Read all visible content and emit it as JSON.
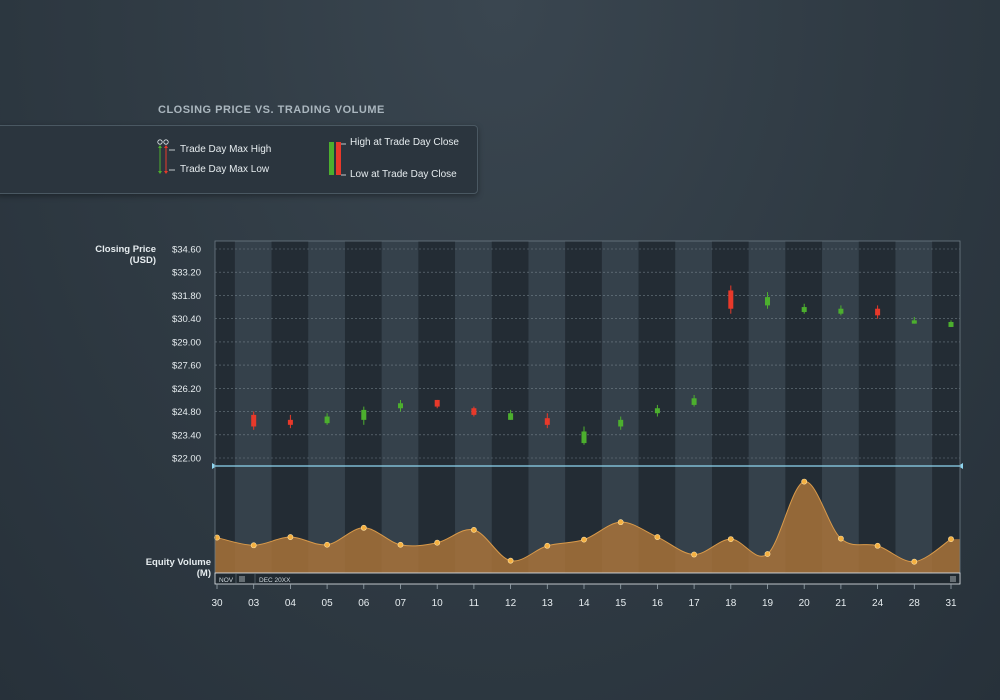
{
  "title": "CLOSING PRICE VS. TRADING VOLUME",
  "legend": {
    "max_high": "Trade Day Max High",
    "max_low": "Trade Day Max Low",
    "high_close": "High at Trade Day Close",
    "low_close": "Low at Trade Day Close"
  },
  "axes": {
    "price_label_line1": "Closing Price",
    "price_label_line2": "(USD)",
    "volume_label_line1": "Equity Volume",
    "volume_label_line2": "(M)",
    "navigator_left": "NOV",
    "navigator_month": "DEC 20XX"
  },
  "colors": {
    "up": "#4caf2e",
    "down": "#e8392a",
    "volume_fill": "#a8733a",
    "volume_point": "#f5b040",
    "divider": "#8fd6f0"
  },
  "chart_data": [
    {
      "type": "candlestick",
      "title": "CLOSING PRICE VS. TRADING VOLUME",
      "ylabel": "Closing Price (USD)",
      "yticks": [
        "$22.00",
        "$23.40",
        "$24.80",
        "$26.20",
        "$27.60",
        "$29.00",
        "$30.40",
        "$31.80",
        "$33.20",
        "$34.60"
      ],
      "ylim": [
        22.0,
        34.6
      ],
      "categories": [
        "30",
        "03",
        "04",
        "05",
        "06",
        "07",
        "10",
        "11",
        "12",
        "13",
        "14",
        "15",
        "16",
        "17",
        "18",
        "19",
        "20",
        "21",
        "24",
        "28",
        "31"
      ],
      "candles": [
        {
          "day": "03",
          "open": 24.6,
          "close": 23.9,
          "high": 24.8,
          "low": 23.7
        },
        {
          "day": "04",
          "open": 24.3,
          "close": 24.0,
          "high": 24.6,
          "low": 23.8
        },
        {
          "day": "05",
          "open": 24.1,
          "close": 24.5,
          "high": 24.7,
          "low": 24.0
        },
        {
          "day": "06",
          "open": 24.3,
          "close": 24.9,
          "high": 25.1,
          "low": 24.0
        },
        {
          "day": "07",
          "open": 25.0,
          "close": 25.3,
          "high": 25.5,
          "low": 24.8
        },
        {
          "day": "10",
          "open": 25.5,
          "close": 25.1,
          "high": 25.5,
          "low": 25.0
        },
        {
          "day": "11",
          "open": 25.0,
          "close": 24.6,
          "high": 25.1,
          "low": 24.5
        },
        {
          "day": "12",
          "open": 24.3,
          "close": 24.7,
          "high": 24.9,
          "low": 24.3
        },
        {
          "day": "13",
          "open": 24.4,
          "close": 24.0,
          "high": 24.7,
          "low": 23.8
        },
        {
          "day": "14",
          "open": 22.9,
          "close": 23.6,
          "high": 23.9,
          "low": 22.8
        },
        {
          "day": "15",
          "open": 23.9,
          "close": 24.3,
          "high": 24.5,
          "low": 23.7
        },
        {
          "day": "16",
          "open": 24.7,
          "close": 25.0,
          "high": 25.2,
          "low": 24.5
        },
        {
          "day": "17",
          "open": 25.2,
          "close": 25.6,
          "high": 25.8,
          "low": 25.1
        },
        {
          "day": "18",
          "open": 32.1,
          "close": 31.0,
          "high": 32.4,
          "low": 30.7
        },
        {
          "day": "19",
          "open": 31.2,
          "close": 31.7,
          "high": 32.0,
          "low": 31.0
        },
        {
          "day": "20",
          "open": 30.8,
          "close": 31.1,
          "high": 31.3,
          "low": 30.7
        },
        {
          "day": "21",
          "open": 30.7,
          "close": 31.0,
          "high": 31.2,
          "low": 30.6
        },
        {
          "day": "24",
          "open": 31.0,
          "close": 30.6,
          "high": 31.2,
          "low": 30.4
        },
        {
          "day": "28",
          "open": 30.1,
          "close": 30.3,
          "high": 30.5,
          "low": 30.1
        },
        {
          "day": "31",
          "open": 29.9,
          "close": 30.2,
          "high": 30.3,
          "low": 29.9
        }
      ]
    },
    {
      "type": "area",
      "ylabel": "Equity Volume (M)",
      "x": [
        "30",
        "03",
        "04",
        "05",
        "06",
        "07",
        "10",
        "11",
        "12",
        "13",
        "14",
        "15",
        "16",
        "17",
        "18",
        "19",
        "20",
        "21",
        "24",
        "28",
        "31"
      ],
      "values": [
        6.9,
        5.4,
        7.0,
        5.5,
        8.8,
        5.5,
        5.9,
        8.4,
        2.4,
        5.3,
        6.5,
        9.9,
        7.0,
        3.6,
        6.6,
        3.7,
        17.8,
        6.7,
        5.3,
        2.2,
        6.6
      ]
    }
  ]
}
